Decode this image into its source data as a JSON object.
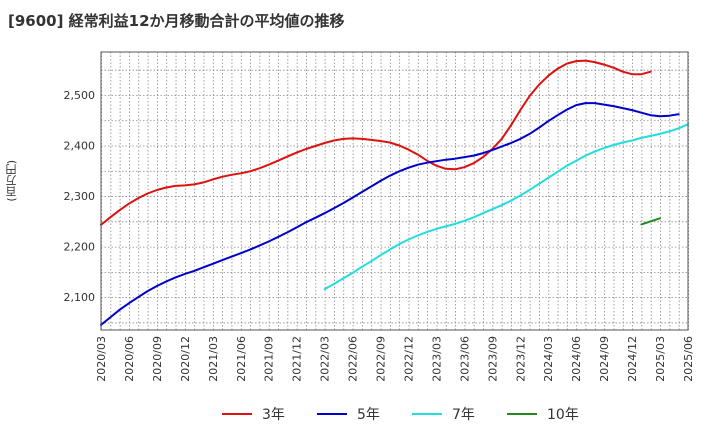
{
  "title": "[9600]  経常利益12か月移動合計の平均値の推移",
  "ylabel": "(百万円)",
  "chart_data": {
    "type": "line",
    "title": "[9600]  経常利益12か月移動合計の平均値の推移",
    "ylabel": "(百万円)",
    "xlabel": "",
    "ylim": [
      2035,
      2585
    ],
    "yticks": [
      2100,
      2200,
      2300,
      2400,
      2500
    ],
    "ytick_labels": [
      "2,100",
      "2,200",
      "2,300",
      "2,400",
      "2,500"
    ],
    "xlim": [
      "2020/03",
      "2025/06"
    ],
    "xtick_labels": [
      "2020/03",
      "2020/06",
      "2020/09",
      "2020/12",
      "2021/03",
      "2021/06",
      "2021/09",
      "2021/12",
      "2022/03",
      "2022/06",
      "2022/09",
      "2022/12",
      "2023/03",
      "2023/06",
      "2023/09",
      "2023/12",
      "2024/03",
      "2024/06",
      "2024/09",
      "2024/12",
      "2025/03",
      "2025/06"
    ],
    "grid": true,
    "legend": "bottom",
    "series": [
      {
        "name": "3年",
        "color": "#dd1111",
        "start": "2020/03",
        "values": [
          2243,
          2258,
          2272,
          2285,
          2296,
          2305,
          2312,
          2317,
          2320,
          2321,
          2323,
          2327,
          2333,
          2338,
          2342,
          2345,
          2349,
          2355,
          2362,
          2370,
          2378,
          2386,
          2393,
          2399,
          2405,
          2410,
          2413,
          2414,
          2413,
          2411,
          2409,
          2406,
          2400,
          2392,
          2382,
          2370,
          2360,
          2354,
          2353,
          2357,
          2365,
          2377,
          2393,
          2413,
          2440,
          2470,
          2498,
          2520,
          2538,
          2552,
          2562,
          2567,
          2568,
          2565,
          2560,
          2554,
          2546,
          2541,
          2541,
          2546
        ]
      },
      {
        "name": "5年",
        "color": "#0000cc",
        "start": "2020/03",
        "values": [
          2045,
          2060,
          2075,
          2088,
          2100,
          2112,
          2122,
          2131,
          2139,
          2146,
          2152,
          2159,
          2166,
          2173,
          2180,
          2187,
          2194,
          2202,
          2210,
          2219,
          2228,
          2238,
          2248,
          2257,
          2266,
          2276,
          2286,
          2297,
          2308,
          2319,
          2330,
          2340,
          2349,
          2356,
          2362,
          2366,
          2369,
          2372,
          2374,
          2377,
          2380,
          2385,
          2391,
          2398,
          2405,
          2413,
          2423,
          2435,
          2448,
          2460,
          2471,
          2480,
          2484,
          2484,
          2481,
          2478,
          2474,
          2470,
          2465,
          2460,
          2458,
          2459,
          2462
        ]
      },
      {
        "name": "7年",
        "color": "#22dddd",
        "start": "2022/03",
        "values": [
          2116,
          2126,
          2137,
          2148,
          2160,
          2171,
          2183,
          2194,
          2205,
          2214,
          2222,
          2229,
          2235,
          2240,
          2245,
          2251,
          2258,
          2266,
          2274,
          2282,
          2291,
          2301,
          2312,
          2324,
          2336,
          2348,
          2360,
          2370,
          2380,
          2388,
          2395,
          2401,
          2406,
          2410,
          2415,
          2419,
          2423,
          2428,
          2434,
          2442
        ]
      },
      {
        "name": "10年",
        "color": "#228822",
        "start": "2025/01",
        "values": [
          2244,
          2250,
          2256
        ]
      }
    ]
  }
}
